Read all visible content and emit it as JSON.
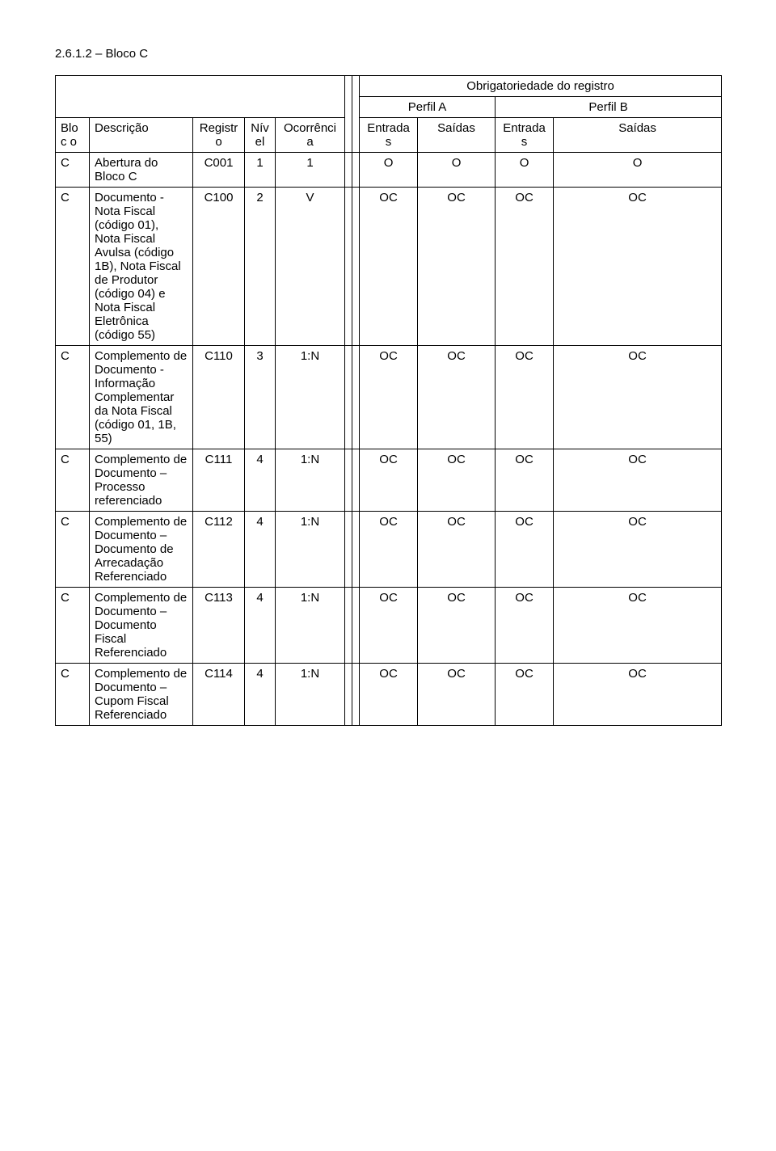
{
  "section_title": "2.6.1.2 – Bloco C",
  "header": {
    "obrig": "Obrigatoriedade do registro",
    "perfilA": "Perfil A",
    "perfilB": "Perfil B",
    "bloco": "Bloc o",
    "descricao": "Descrição",
    "registro": "Registr o",
    "nivel": "Nív el",
    "ocorrencia": "Ocorrênci a",
    "entradaA": "Entrada s",
    "saidaA": "Saídas",
    "entradaB": "Entrada s",
    "saidaB": "Saídas"
  },
  "rows": [
    {
      "bloco": "C",
      "desc": "Abertura do Bloco C",
      "reg": "C001",
      "niv": "1",
      "occ": "1",
      "eA": "O",
      "sA": "O",
      "eB": "O",
      "sB": "O"
    },
    {
      "bloco": "C",
      "desc": "Documento - Nota Fiscal (código 01), Nota Fiscal Avulsa (código 1B), Nota Fiscal de Produtor (código 04) e Nota Fiscal Eletrônica (código 55)",
      "reg": "C100",
      "niv": "2",
      "occ": "V",
      "eA": "OC",
      "sA": "OC",
      "eB": "OC",
      "sB": "OC"
    },
    {
      "bloco": "C",
      "desc": "Complemento de Documento - Informação Complementar da Nota Fiscal (código 01, 1B, 55)",
      "reg": "C110",
      "niv": "3",
      "occ": "1:N",
      "eA": "OC",
      "sA": "OC",
      "eB": "OC",
      "sB": "OC"
    },
    {
      "bloco": "C",
      "desc": "Complemento de Documento – Processo referenciado",
      "reg": "C111",
      "niv": "4",
      "occ": "1:N",
      "eA": "OC",
      "sA": "OC",
      "eB": "OC",
      "sB": "OC"
    },
    {
      "bloco": "C",
      "desc": "Complemento de Documento – Documento de Arrecadação Referenciado",
      "reg": "C112",
      "niv": "4",
      "occ": "1:N",
      "eA": "OC",
      "sA": "OC",
      "eB": "OC",
      "sB": "OC"
    },
    {
      "bloco": "C",
      "desc": "Complemento de Documento – Documento Fiscal Referenciado",
      "reg": "C113",
      "niv": "4",
      "occ": "1:N",
      "eA": "OC",
      "sA": "OC",
      "eB": "OC",
      "sB": "OC"
    },
    {
      "bloco": "C",
      "desc": "Complemento de Documento – Cupom Fiscal Referenciado",
      "reg": "C114",
      "niv": "4",
      "occ": "1:N",
      "eA": "OC",
      "sA": "OC",
      "eB": "OC",
      "sB": "OC"
    }
  ]
}
